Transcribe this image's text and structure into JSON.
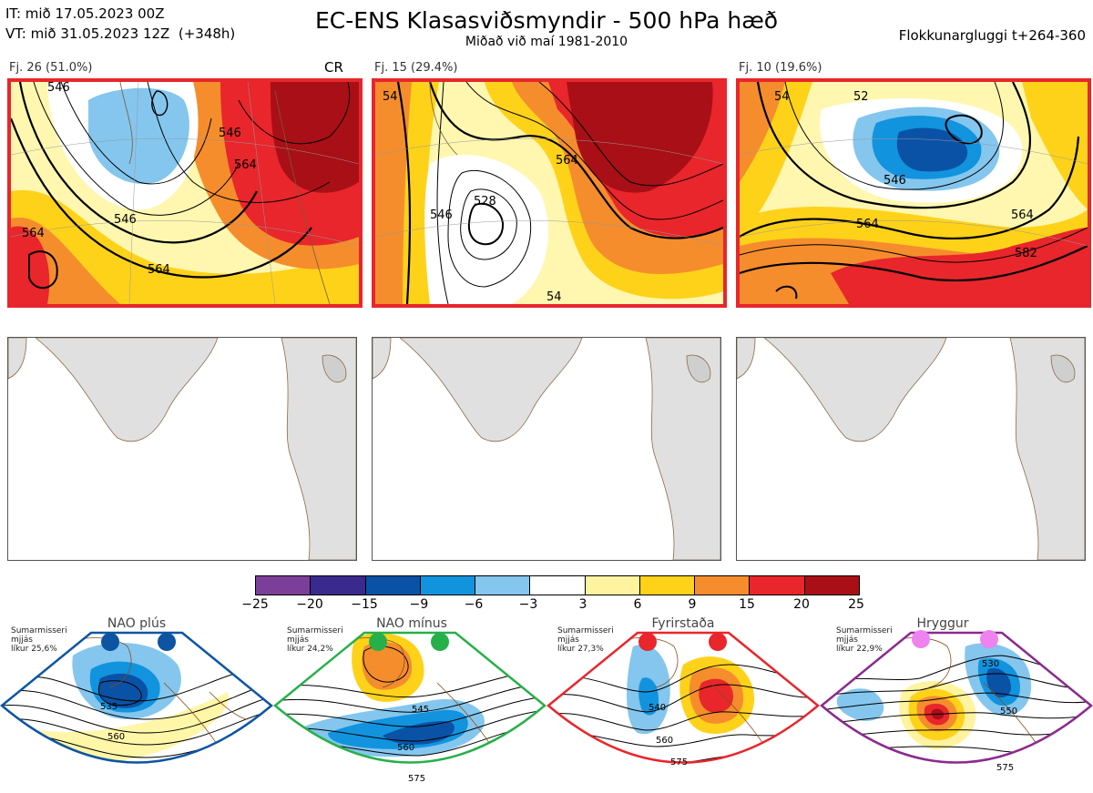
{
  "header": {
    "it_line": "IT: mið 17.05.2023 00Z",
    "vt_line": "VT: mið 31.05.2023 12Z  (+348h)",
    "title": "EC-ENS Klasasviðsmyndir - 500 hPa hæð",
    "subtitle": "Miðað við maí 1981-2010",
    "window": "Flokkunargluggi t+264-360"
  },
  "clusters": [
    {
      "label": "Fj. 26 (51.0%)",
      "tag": "CR",
      "contours": [
        "546",
        "546",
        "564",
        "546",
        "564",
        "564"
      ],
      "highlight_color": "#e8262b"
    },
    {
      "label": "Fj. 15 (29.4%)",
      "tag": "",
      "contours": [
        "528",
        "546",
        "564",
        "54",
        "54"
      ],
      "highlight_color": "#e8262b"
    },
    {
      "label": "Fj. 10 (19.6%)",
      "tag": "",
      "contours": [
        "546",
        "564",
        "564",
        "582",
        "52",
        "54"
      ],
      "highlight_color": "#e8262b"
    }
  ],
  "colorbar": {
    "ticks": [
      "−25",
      "−20",
      "−15",
      "−9",
      "−6",
      "−3",
      "3",
      "6",
      "9",
      "15",
      "20",
      "25"
    ],
    "colors": [
      "#7b3f99",
      "#3a2a8e",
      "#0a52a6",
      "#1293de",
      "#84c6ee",
      "#ffffff",
      "#fff3a0",
      "#ffd21a",
      "#f58d2d",
      "#e8262b",
      "#a90f16"
    ]
  },
  "regimes": [
    {
      "title": "NAO plús",
      "note": "Sumarmisseri\nmjjás\nlíkur 25,6%",
      "dot_color": "#0d55a3",
      "border_color": "#0d55a3",
      "contours": [
        "535",
        "560"
      ]
    },
    {
      "title": "NAO mínus",
      "note": "Sumarmisseri\nmjjás\nlíkur 24,2%",
      "dot_color": "#27b04a",
      "border_color": "#27b04a",
      "contours": [
        "545",
        "560",
        "575"
      ]
    },
    {
      "title": "Fyrirstaða",
      "note": "Sumarmisseri\nmjjás\nlíkur 27,3%",
      "dot_color": "#e8262b",
      "border_color": "#e8262b",
      "contours": [
        "540",
        "560",
        "575"
      ]
    },
    {
      "title": "Hryggur",
      "note": "Sumarmisseri\nmjjás\nlíkur 22,9%",
      "dot_color": "#ee82ee",
      "border_color": "#8b2a8e",
      "contours": [
        "530",
        "550",
        "575"
      ]
    }
  ]
}
